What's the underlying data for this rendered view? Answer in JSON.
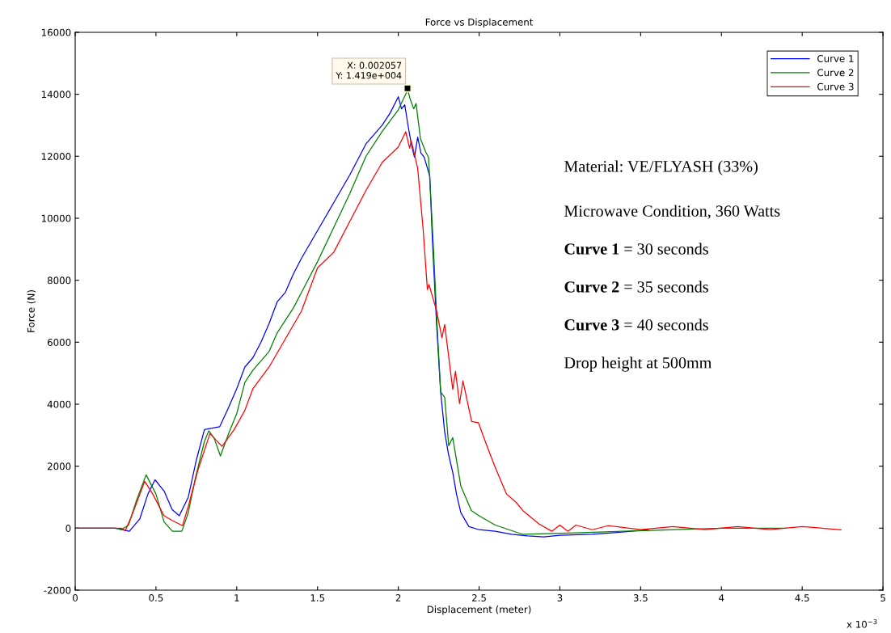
{
  "chart_data": {
    "type": "line",
    "title": "Force vs Displacement",
    "xlabel": "Displacement (meter)",
    "ylabel": "Force (N)",
    "xlim": [
      0,
      5
    ],
    "ylim": [
      -2000,
      16000
    ],
    "xticks": [
      0,
      0.5,
      1,
      1.5,
      2,
      2.5,
      3,
      3.5,
      4,
      4.5,
      5
    ],
    "yticks": [
      -2000,
      0,
      2000,
      4000,
      6000,
      8000,
      10000,
      12000,
      14000,
      16000
    ],
    "grid": false,
    "legend": "top right",
    "marker": "none",
    "line_style": "solid",
    "series": [
      {
        "name": "Curve 1",
        "color": "#0000ff",
        "x": [
          0,
          0.25,
          0.335,
          0.4,
          0.45,
          0.494,
          0.55,
          0.6,
          0.644,
          0.7,
          0.75,
          0.8,
          0.894,
          0.95,
          1.0,
          1.05,
          1.1,
          1.15,
          1.2,
          1.25,
          1.3,
          1.35,
          1.4,
          1.5,
          1.6,
          1.7,
          1.8,
          1.9,
          1.95,
          2.0,
          2.02,
          2.04,
          2.057,
          2.08,
          2.1,
          2.12,
          2.14,
          2.16,
          2.195,
          2.212,
          2.237,
          2.262,
          2.287,
          2.31,
          2.337,
          2.36,
          2.387,
          2.437,
          2.5,
          2.6,
          2.7,
          2.8,
          2.9,
          3.0,
          3.2,
          3.4,
          3.547
        ],
        "values": [
          0,
          0,
          -100,
          300,
          1100,
          1560,
          1200,
          600,
          400,
          1000,
          2200,
          3180,
          3270,
          3900,
          4500,
          5200,
          5500,
          6000,
          6600,
          7300,
          7600,
          8200,
          8700,
          9600,
          10500,
          11400,
          12400,
          13000,
          13400,
          13920,
          13530,
          13660,
          13090,
          12400,
          11970,
          12620,
          12100,
          11970,
          11350,
          9180,
          6570,
          4400,
          3100,
          2400,
          1800,
          1100,
          500,
          50,
          -50,
          -100,
          -200,
          -250,
          -280,
          -230,
          -200,
          -120,
          -50
        ]
      },
      {
        "name": "Curve 2",
        "color": "#008000",
        "x": [
          0,
          0.25,
          0.285,
          0.33,
          0.38,
          0.439,
          0.5,
          0.55,
          0.602,
          0.66,
          0.7,
          0.744,
          0.8,
          0.827,
          0.86,
          0.899,
          0.953,
          1.0,
          1.05,
          1.1,
          1.2,
          1.25,
          1.3,
          1.35,
          1.4,
          1.5,
          1.6,
          1.7,
          1.8,
          1.9,
          2.0,
          2.05,
          2.057,
          2.07,
          2.095,
          2.11,
          2.137,
          2.17,
          2.187,
          2.212,
          2.24,
          2.262,
          2.287,
          2.312,
          2.337,
          2.387,
          2.452,
          2.5,
          2.6,
          2.77,
          3.1,
          3.52,
          4.0,
          4.4
        ],
        "values": [
          0,
          0,
          -50,
          100,
          900,
          1720,
          1100,
          200,
          -100,
          -100,
          500,
          1620,
          2800,
          3140,
          2900,
          2330,
          3100,
          3700,
          4700,
          5100,
          5700,
          6300,
          6700,
          7100,
          7600,
          8600,
          9700,
          10800,
          12000,
          12800,
          13500,
          14050,
          14190,
          13900,
          13530,
          13700,
          12570,
          12130,
          11970,
          9620,
          6570,
          4400,
          4220,
          2660,
          2920,
          1360,
          570,
          400,
          100,
          -200,
          -150,
          -80,
          0,
          0
        ]
      },
      {
        "name": "Curve 3",
        "color": "#ff0000",
        "x": [
          0,
          0.285,
          0.31,
          0.35,
          0.43,
          0.48,
          0.55,
          0.6,
          0.664,
          0.7,
          0.76,
          0.834,
          0.909,
          0.984,
          1.05,
          1.1,
          1.2,
          1.3,
          1.4,
          1.5,
          1.6,
          1.7,
          1.8,
          1.9,
          2.0,
          2.046,
          2.07,
          2.08,
          2.12,
          2.154,
          2.18,
          2.19,
          2.237,
          2.27,
          2.287,
          2.337,
          2.354,
          2.379,
          2.4,
          2.454,
          2.496,
          2.554,
          2.6,
          2.67,
          2.73,
          2.77,
          2.87,
          2.95,
          3.0,
          3.05,
          3.1,
          3.2,
          3.3,
          3.5,
          3.7,
          3.9,
          4.1,
          4.3,
          4.5,
          4.74
        ],
        "values": [
          0,
          0,
          -80,
          400,
          1510,
          1100,
          400,
          250,
          80,
          700,
          1880,
          3050,
          2640,
          3180,
          3800,
          4500,
          5200,
          6100,
          7000,
          8400,
          8900,
          9900,
          10900,
          11800,
          12300,
          12790,
          12260,
          12500,
          11610,
          9620,
          7700,
          7860,
          7010,
          6140,
          6570,
          4480,
          5060,
          4020,
          4750,
          3440,
          3400,
          2580,
          1960,
          1100,
          830,
          570,
          140,
          -100,
          100,
          -100,
          100,
          -50,
          80,
          -50,
          50,
          -50,
          50,
          -50,
          50,
          -50
        ]
      }
    ],
    "annotations": [
      "x 10$^{−3}$",
      {
        "text": "X: 0.002057\nY: 1.419e+004",
        "x": 2.057,
        "y": 14190
      },
      "Material: VE/FLYASH (33%)",
      "Microwave Condition, 360 Watts",
      "Curve 1 = 30 seconds",
      "Curve 2 = 35 seconds",
      "Curve 3 = 40 seconds",
      "Drop height at 500mm"
    ]
  }
}
